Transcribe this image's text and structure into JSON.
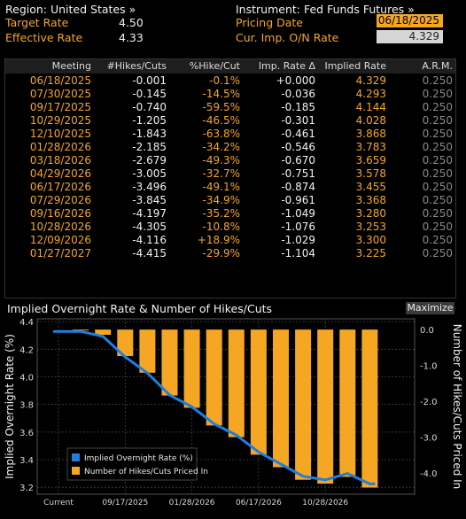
{
  "header": {
    "region_label": "Region: United States »",
    "instrument_label": "Instrument: Fed Funds Futures »",
    "target_rate_label": "Target Rate",
    "target_rate_value": "4.50",
    "effective_rate_label": "Effective Rate",
    "effective_rate_value": "4.33",
    "pricing_date_label": "Pricing Date",
    "pricing_date_value": "06/18/2025",
    "cur_imp_label": "Cur. Imp. O/N Rate",
    "cur_imp_value": "4.329"
  },
  "table": {
    "columns": [
      "Meeting",
      "#Hikes/Cuts",
      "%Hike/Cut",
      "Imp. Rate Δ",
      "Implied Rate",
      "A.R.M."
    ],
    "rows": [
      [
        "06/18/2025",
        "-0.001",
        "-0.1%",
        "+0.000",
        "4.329",
        "0.250"
      ],
      [
        "07/30/2025",
        "-0.145",
        "-14.5%",
        "-0.036",
        "4.293",
        "0.250"
      ],
      [
        "09/17/2025",
        "-0.740",
        "-59.5%",
        "-0.185",
        "4.144",
        "0.250"
      ],
      [
        "10/29/2025",
        "-1.205",
        "-46.5%",
        "-0.301",
        "4.028",
        "0.250"
      ],
      [
        "12/10/2025",
        "-1.843",
        "-63.8%",
        "-0.461",
        "3.868",
        "0.250"
      ],
      [
        "01/28/2026",
        "-2.185",
        "-34.2%",
        "-0.546",
        "3.783",
        "0.250"
      ],
      [
        "03/18/2026",
        "-2.679",
        "-49.3%",
        "-0.670",
        "3.659",
        "0.250"
      ],
      [
        "04/29/2026",
        "-3.005",
        "-32.7%",
        "-0.751",
        "3.578",
        "0.250"
      ],
      [
        "06/17/2026",
        "-3.496",
        "-49.1%",
        "-0.874",
        "3.455",
        "0.250"
      ],
      [
        "07/29/2026",
        "-3.845",
        "-34.9%",
        "-0.961",
        "3.368",
        "0.250"
      ],
      [
        "09/16/2026",
        "-4.197",
        "-35.2%",
        "-1.049",
        "3.280",
        "0.250"
      ],
      [
        "10/28/2026",
        "-4.305",
        "-10.8%",
        "-1.076",
        "3.253",
        "0.250"
      ],
      [
        "12/09/2026",
        "-4.116",
        "+18.9%",
        "-1.029",
        "3.300",
        "0.250"
      ],
      [
        "01/27/2027",
        "-4.415",
        "-29.9%",
        "-1.104",
        "3.225",
        "0.250"
      ]
    ]
  },
  "chart": {
    "title": "Implied Overnight Rate & Number of Hikes/Cuts",
    "maximize_label": "Maximize"
  },
  "colors": {
    "accent_orange": "#f5a623",
    "line_blue": "#1e7fe0",
    "background": "#000000"
  },
  "chart_data": {
    "type": "bar",
    "title": "Implied Overnight Rate & Number of Hikes/Cuts",
    "x_tick_labels": [
      "Current",
      "09/17/2025",
      "01/28/2026",
      "06/17/2026",
      "10/28/2026"
    ],
    "categories": [
      "06/18/2025",
      "07/30/2025",
      "09/17/2025",
      "10/29/2025",
      "12/10/2025",
      "01/28/2026",
      "03/18/2026",
      "04/29/2026",
      "06/17/2026",
      "07/29/2026",
      "09/16/2026",
      "10/28/2026",
      "12/09/2026",
      "01/27/2027"
    ],
    "series": [
      {
        "name": "Implied Overnight Rate (%)",
        "kind": "line",
        "axis": "left",
        "current": 4.329,
        "values": [
          4.329,
          4.293,
          4.144,
          4.028,
          3.868,
          3.783,
          3.659,
          3.578,
          3.455,
          3.368,
          3.28,
          3.253,
          3.3,
          3.225
        ]
      },
      {
        "name": "Number of Hikes/Cuts Priced In",
        "kind": "bar",
        "axis": "right",
        "values": [
          -0.001,
          -0.145,
          -0.74,
          -1.205,
          -1.843,
          -2.185,
          -2.679,
          -3.005,
          -3.496,
          -3.845,
          -4.197,
          -4.305,
          -4.116,
          -4.415
        ]
      }
    ],
    "ylabel_left": "Implied Overnight Rate (%)",
    "ylabel_right": "Number of Hikes/Cuts Priced In",
    "ylim_left": [
      3.15,
      4.42
    ],
    "ylim_right": [
      -4.6,
      0.3
    ],
    "yticks_left": [
      "4.4",
      "4.2",
      "4.0",
      "3.8",
      "3.6",
      "3.4",
      "3.2"
    ],
    "yticks_right": [
      "0.0",
      "-1.0",
      "-2.0",
      "-3.0",
      "-4.0"
    ],
    "yticks_left_values": [
      4.4,
      4.2,
      4.0,
      3.8,
      3.6,
      3.4,
      3.2
    ],
    "yticks_right_values": [
      0,
      -1,
      -2,
      -3,
      -4
    ],
    "grid": true,
    "legend_position": "bottom-left"
  }
}
